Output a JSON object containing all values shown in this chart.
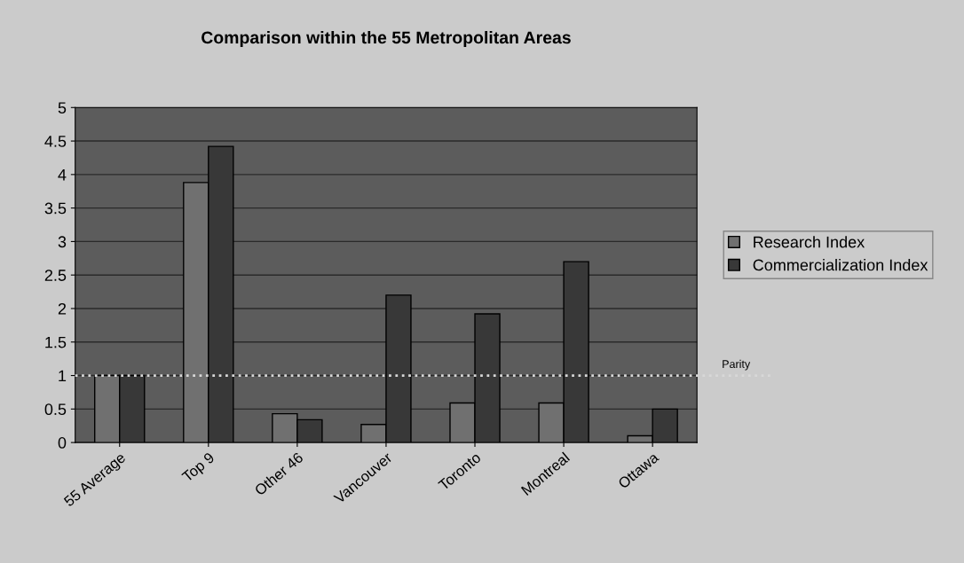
{
  "chart_data": {
    "type": "bar",
    "title": "Comparison within the 55 Metropolitan Areas",
    "categories": [
      "55 Average",
      "Top 9",
      "Other 46",
      "Vancouver",
      "Toronto",
      "Montreal",
      "Ottawa"
    ],
    "series": [
      {
        "name": "Research Index",
        "color": "#707070",
        "values": [
          1,
          3.88,
          0.43,
          0.27,
          0.59,
          0.59,
          0.1
        ]
      },
      {
        "name": "Commercialization Index",
        "color": "#383838",
        "values": [
          1,
          4.42,
          0.34,
          2.2,
          1.92,
          2.7,
          0.5
        ]
      }
    ],
    "ylim": [
      0,
      5
    ],
    "yticks": [
      0,
      0.5,
      1,
      1.5,
      2,
      2.5,
      3,
      3.5,
      4,
      4.5,
      5
    ],
    "grid": "y",
    "legend": "right",
    "ref_lines": [
      {
        "axis": "y",
        "value": 1,
        "label": "Parity",
        "color": "#d8d8d8",
        "line_style": "dotted"
      }
    ]
  }
}
